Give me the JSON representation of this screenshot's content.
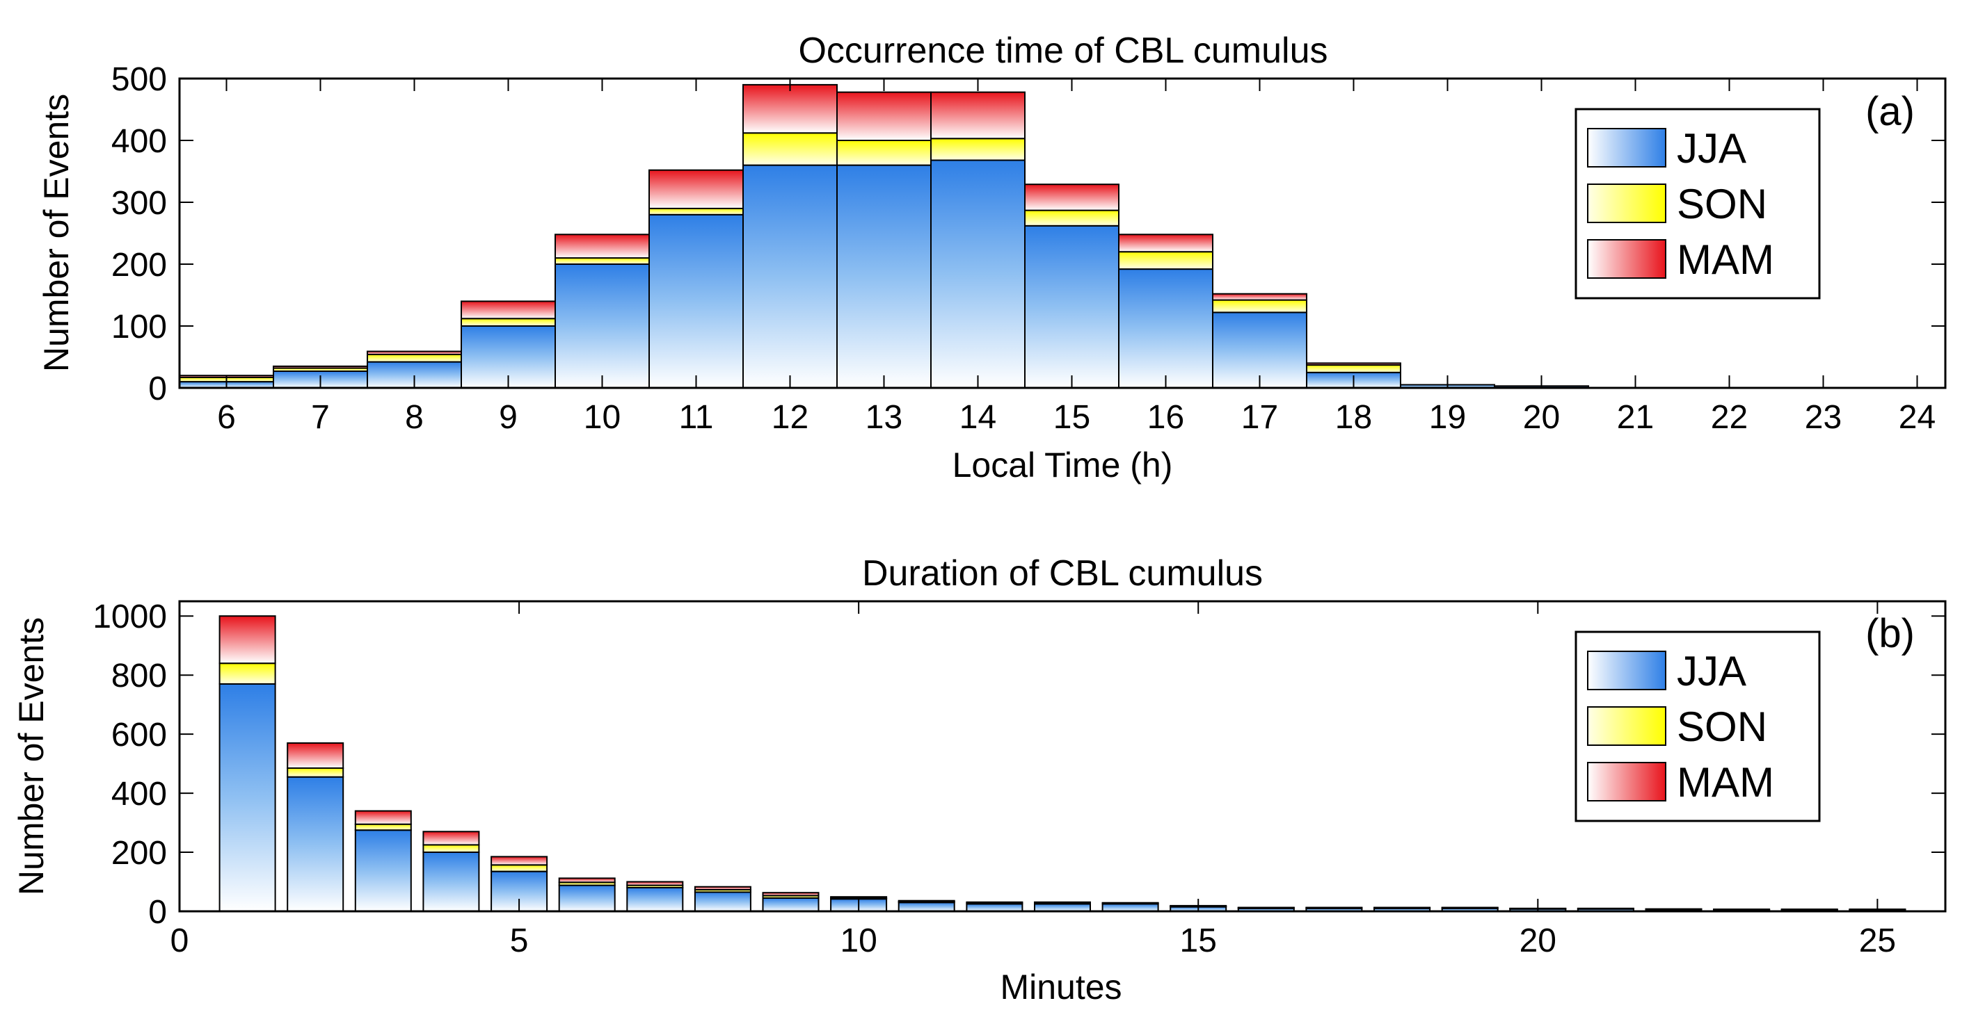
{
  "chart_data": [
    {
      "type": "bar",
      "stacked": true,
      "title": "Occurrence time of CBL cumulus",
      "xlabel": "Local Time (h)",
      "ylabel": "Number of Events",
      "panel_label": "(a)",
      "xlim": [
        5.5,
        24.3
      ],
      "ylim": [
        0,
        500
      ],
      "xticks": [
        6,
        7,
        8,
        9,
        10,
        11,
        12,
        13,
        14,
        15,
        16,
        17,
        18,
        19,
        20,
        21,
        22,
        23,
        24
      ],
      "yticks": [
        0,
        100,
        200,
        300,
        400,
        500
      ],
      "legend_position": "top-right",
      "categories": [
        6,
        7,
        8,
        9,
        10,
        11,
        12,
        13,
        14,
        15,
        16,
        17,
        18,
        19,
        20
      ],
      "series": [
        {
          "name": "JJA",
          "color": "#2E7FE6",
          "values": [
            10,
            27,
            42,
            100,
            200,
            280,
            360,
            360,
            368,
            262,
            192,
            122,
            25,
            5,
            3
          ]
        },
        {
          "name": "SON",
          "color": "#FFFF00",
          "values": [
            7,
            5,
            12,
            12,
            10,
            10,
            52,
            40,
            35,
            25,
            28,
            20,
            12,
            0,
            0
          ]
        },
        {
          "name": "MAM",
          "color": "#E8141C",
          "values": [
            3,
            3,
            5,
            28,
            38,
            62,
            78,
            78,
            75,
            42,
            28,
            10,
            3,
            0,
            0
          ]
        }
      ]
    },
    {
      "type": "bar",
      "stacked": true,
      "title": "Duration of CBL cumulus",
      "xlabel": "Minutes",
      "ylabel": "Number of Events",
      "panel_label": "(b)",
      "xlim": [
        0,
        26
      ],
      "ylim": [
        0,
        1050
      ],
      "xticks": [
        0,
        5,
        10,
        15,
        20,
        25
      ],
      "yticks": [
        0,
        200,
        400,
        600,
        800,
        1000
      ],
      "legend_position": "top-right",
      "categories": [
        1,
        2,
        3,
        4,
        5,
        6,
        7,
        8,
        9,
        10,
        11,
        12,
        13,
        14,
        15,
        16,
        17,
        18,
        19,
        20,
        21,
        22,
        23,
        24,
        25
      ],
      "series": [
        {
          "name": "JJA",
          "color": "#2E7FE6",
          "values": [
            770,
            455,
            275,
            200,
            135,
            88,
            80,
            65,
            45,
            42,
            30,
            25,
            25,
            25,
            15,
            10,
            10,
            10,
            10,
            8,
            8,
            6,
            5,
            5,
            5
          ]
        },
        {
          "name": "SON",
          "color": "#FFFF00",
          "values": [
            70,
            30,
            20,
            25,
            22,
            10,
            8,
            8,
            8,
            3,
            3,
            3,
            3,
            2,
            2,
            2,
            2,
            2,
            2,
            1,
            1,
            1,
            1,
            1,
            1
          ]
        },
        {
          "name": "MAM",
          "color": "#E8141C",
          "values": [
            160,
            85,
            45,
            45,
            28,
            14,
            12,
            10,
            10,
            4,
            3,
            3,
            3,
            2,
            2,
            1,
            1,
            1,
            1,
            1,
            1,
            1,
            1,
            1,
            1
          ]
        }
      ]
    }
  ]
}
